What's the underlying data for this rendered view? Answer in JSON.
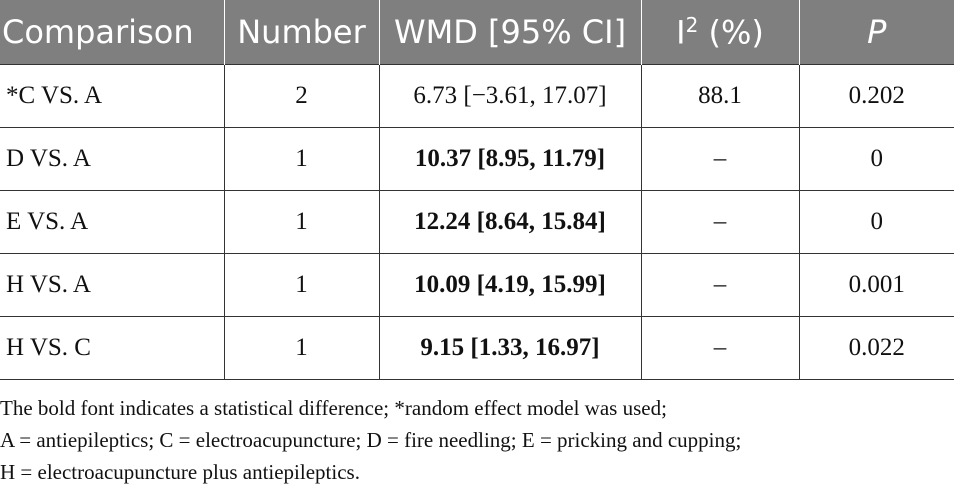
{
  "table": {
    "headers": {
      "comparison": "Comparison",
      "number": "Number",
      "wmd": "WMD [95% CI]",
      "i2_base": "I",
      "i2_sup": "2",
      "i2_suffix": " (%)",
      "p": "P"
    },
    "rows": [
      {
        "comparison": "*C VS. A",
        "number": "2",
        "wmd_value": "6.73",
        "wmd_ci": " [−3.61, 17.07]",
        "bold": false,
        "i2": "88.1",
        "p": "0.202"
      },
      {
        "comparison": "D VS. A",
        "number": "1",
        "wmd_value": "10.37",
        "wmd_ci": " [8.95, 11.79]",
        "bold": true,
        "i2": "–",
        "p": "0"
      },
      {
        "comparison": "E VS. A",
        "number": "1",
        "wmd_value": "12.24",
        "wmd_ci": " [8.64, 15.84]",
        "bold": true,
        "i2": "–",
        "p": "0"
      },
      {
        "comparison": "H VS. A",
        "number": "1",
        "wmd_value": "10.09",
        "wmd_ci": " [4.19, 15.99]",
        "bold": true,
        "i2": "–",
        "p": "0.001"
      },
      {
        "comparison": "H VS. C",
        "number": "1",
        "wmd_value": "9.15",
        "wmd_ci": " [1.33, 16.97]",
        "bold": true,
        "i2": "–",
        "p": "0.022"
      }
    ]
  },
  "footnote": {
    "line1": "The bold font indicates a statistical difference; *random effect model was used;",
    "line2": "A = antiepileptics; C = electroacupuncture; D = fire needling; E = pricking and cupping;",
    "line3": "H = electroacupuncture plus antiepileptics."
  }
}
